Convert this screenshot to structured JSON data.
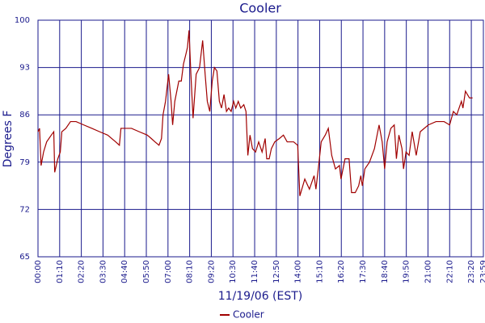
{
  "chart_data": {
    "type": "line",
    "title": "Cooler",
    "x_label": "11/19/06 (EST)",
    "y_label": "Degrees F",
    "x": [
      "00:00",
      "00:05",
      "00:10",
      "00:18",
      "00:28",
      "00:43",
      "00:51",
      "00:54",
      "01:04",
      "01:12",
      "01:17",
      "01:30",
      "01:45",
      "02:03",
      "02:28",
      "02:54",
      "03:19",
      "03:45",
      "04:11",
      "04:23",
      "04:28",
      "05:02",
      "05:27",
      "05:53",
      "06:06",
      "06:18",
      "06:31",
      "06:39",
      "06:44",
      "06:52",
      "07:02",
      "07:10",
      "07:15",
      "07:22",
      "07:35",
      "07:43",
      "07:50",
      "07:58",
      "08:03",
      "08:08",
      "08:14",
      "08:21",
      "08:31",
      "08:42",
      "08:52",
      "09:00",
      "09:07",
      "09:15",
      "09:23",
      "09:30",
      "09:38",
      "09:46",
      "09:53",
      "10:01",
      "10:09",
      "10:16",
      "10:24",
      "10:32",
      "10:39",
      "10:47",
      "10:55",
      "11:05",
      "11:12",
      "11:18",
      "11:25",
      "11:33",
      "11:43",
      "11:53",
      "12:04",
      "12:14",
      "12:19",
      "12:27",
      "12:34",
      "12:45",
      "13:00",
      "13:13",
      "13:25",
      "13:46",
      "13:59",
      "14:06",
      "14:22",
      "14:37",
      "14:52",
      "14:58",
      "15:08",
      "15:15",
      "15:28",
      "15:38",
      "15:49",
      "16:01",
      "16:14",
      "16:19",
      "16:32",
      "16:45",
      "16:53",
      "17:05",
      "17:16",
      "17:23",
      "17:28",
      "17:36",
      "17:51",
      "18:07",
      "18:22",
      "18:32",
      "18:40",
      "18:48",
      "19:00",
      "19:11",
      "19:18",
      "19:26",
      "19:36",
      "19:41",
      "19:49",
      "19:59",
      "20:09",
      "20:22",
      "20:35",
      "21:01",
      "21:26",
      "21:52",
      "22:10",
      "22:22",
      "22:33",
      "22:48",
      "22:53",
      "23:01",
      "23:14",
      "23:24"
    ],
    "series": [
      {
        "name": "Cooler",
        "color": "#a00000",
        "values": [
          83.5,
          84,
          78.5,
          80.5,
          82,
          83,
          83.5,
          77.5,
          79.5,
          80.5,
          83.5,
          84,
          85,
          85,
          84.5,
          84,
          83.5,
          83,
          82,
          81.5,
          84,
          84,
          83.5,
          83,
          82.5,
          82,
          81.5,
          82.5,
          86,
          88,
          92,
          88,
          84.5,
          88,
          91,
          91,
          93.5,
          95,
          96,
          98.5,
          92,
          85.5,
          92,
          93,
          97,
          92,
          88,
          86.5,
          91,
          93,
          92.5,
          88,
          87,
          89,
          86.5,
          87,
          86.5,
          88,
          87,
          88,
          87,
          87.5,
          86.5,
          80,
          83,
          81,
          80.5,
          82,
          80.5,
          82.5,
          79.5,
          79.5,
          81,
          82,
          82.5,
          83,
          82,
          82,
          81.5,
          74,
          76.5,
          75,
          77,
          75,
          79,
          82,
          83,
          84,
          80,
          78,
          78.5,
          76.5,
          79.5,
          79.5,
          74.5,
          74.5,
          75.5,
          77,
          75.5,
          78,
          79,
          81,
          84.5,
          82,
          78,
          82,
          84,
          84.5,
          79.5,
          83,
          81,
          78,
          80.5,
          80,
          83.5,
          80,
          83.5,
          84.5,
          85,
          85,
          84.5,
          86.5,
          86,
          88,
          87,
          89.5,
          88.5,
          88.5
        ]
      }
    ],
    "xlim": [
      "00:00",
      "23:59"
    ],
    "xticks": [
      "00:00",
      "01:10",
      "02:20",
      "03:30",
      "04:40",
      "05:50",
      "07:00",
      "08:10",
      "09:20",
      "10:30",
      "11:40",
      "12:50",
      "14:00",
      "15:10",
      "16:20",
      "17:30",
      "18:40",
      "19:50",
      "21:00",
      "22:10",
      "23:20",
      "23:59"
    ],
    "ylim": [
      65,
      100
    ],
    "yticks": [
      65,
      72,
      79,
      86,
      93,
      100
    ],
    "grid": true,
    "legend": "bottom"
  }
}
